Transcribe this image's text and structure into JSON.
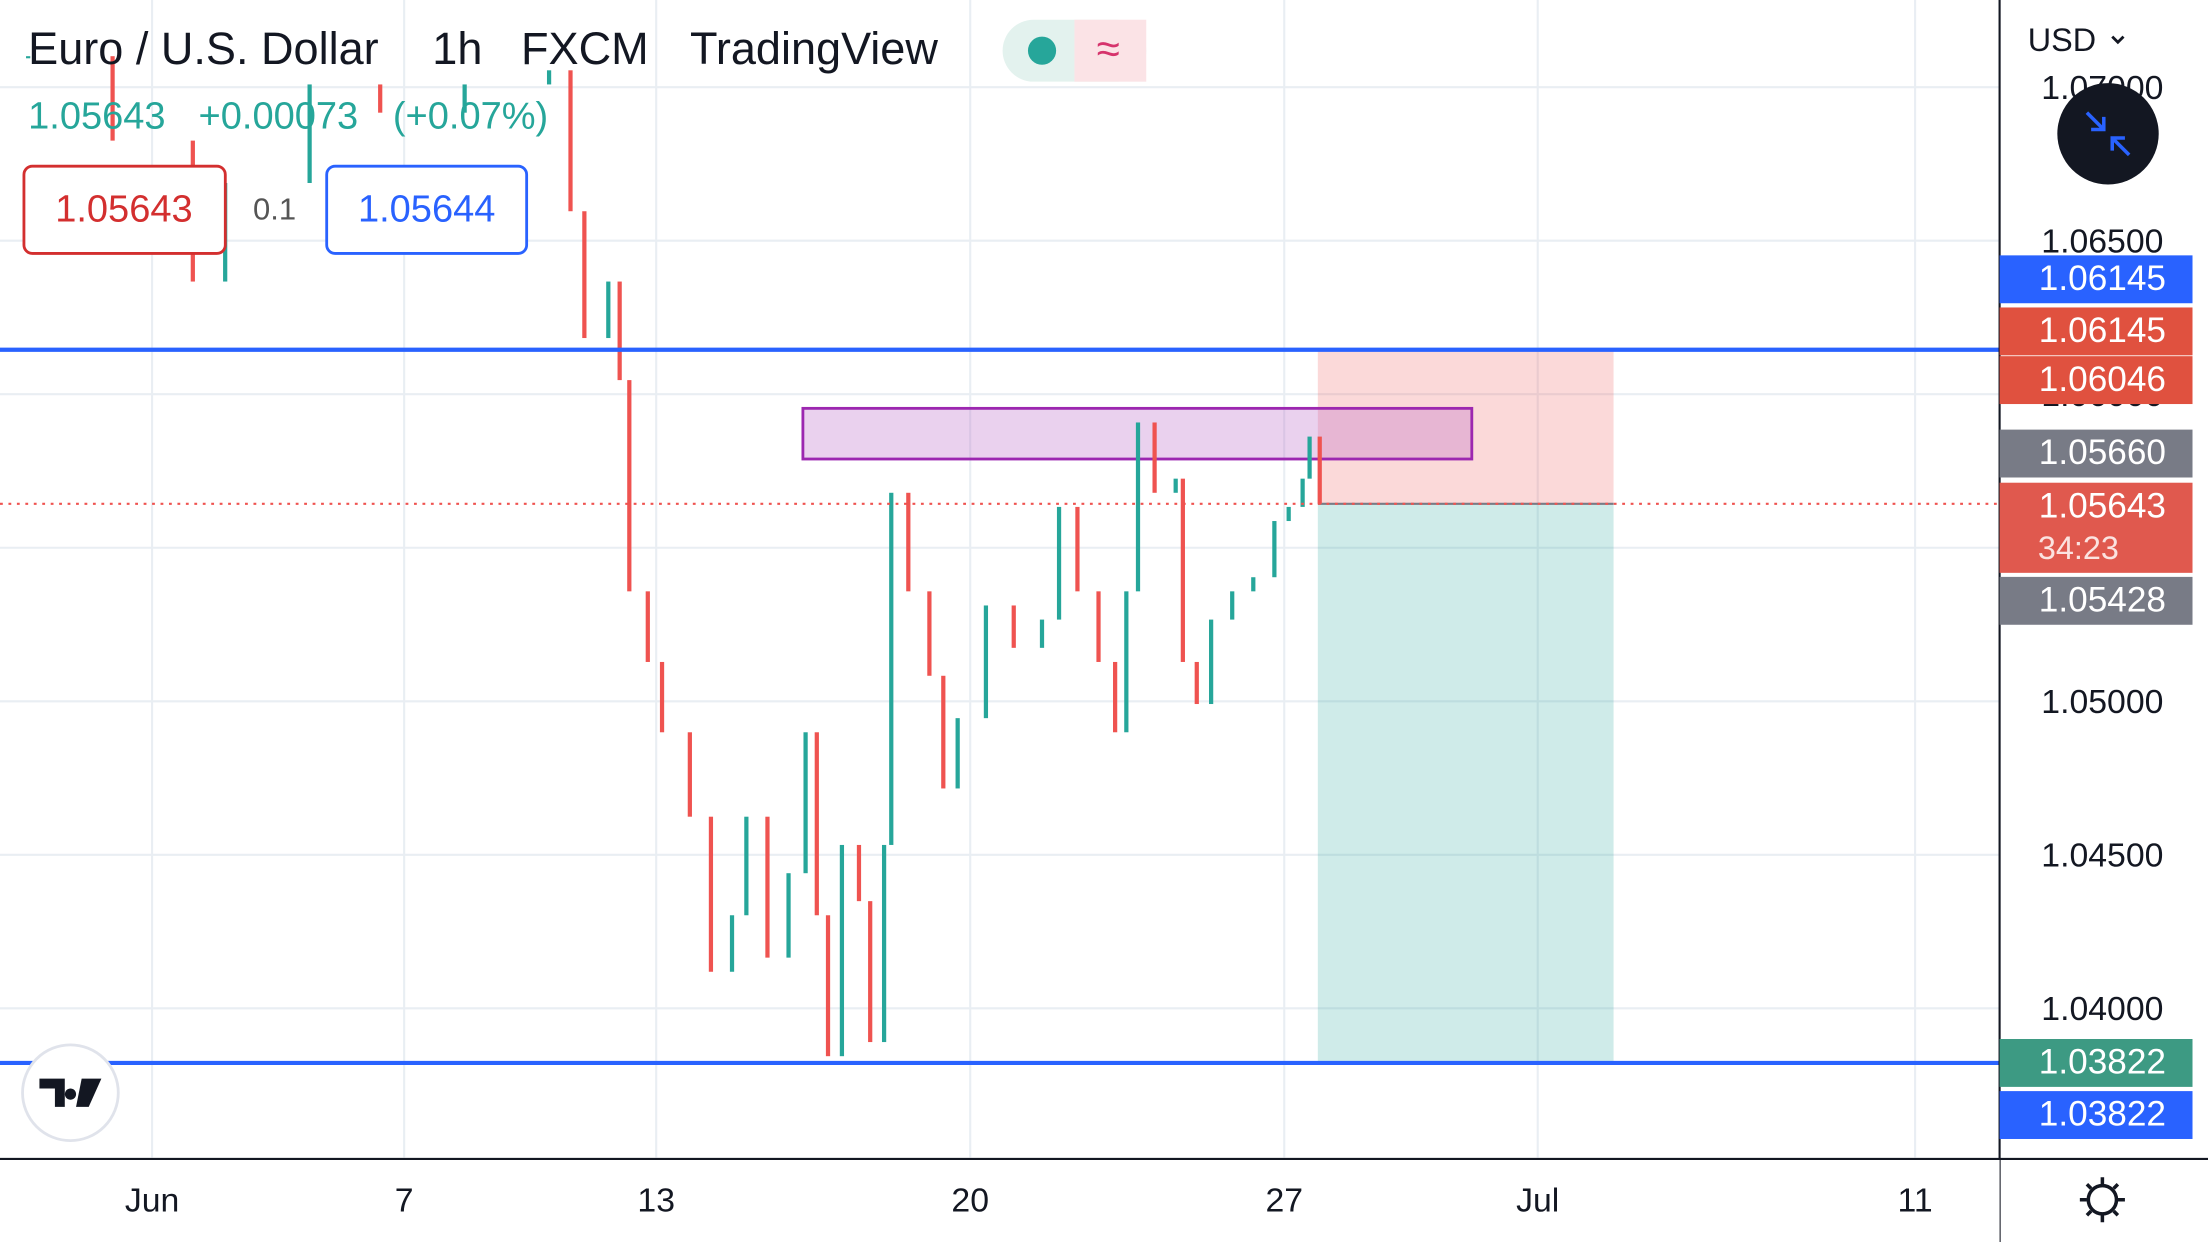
{
  "header": {
    "symbol": "Euro / U.S. Dollar",
    "interval": "1h",
    "source": "FXCM",
    "platform": "TradingView",
    "last": "1.05643",
    "change": "+0.00073",
    "change_pct": "(+0.07%)",
    "bid": "1.05643",
    "spread": "0.1",
    "ask": "1.05644",
    "currency": "USD",
    "countdown": "34:23"
  },
  "chart_data": {
    "type": "candlestick",
    "up_color": "#26a69a",
    "down_color": "#ef5350",
    "x": [
      -1.95,
      0.06,
      1.97,
      2.74,
      4.75,
      6.43,
      8.44,
      10.45,
      10.96,
      11.29,
      11.86,
      12.13,
      12.36,
      12.8,
      13.13,
      13.75,
      14.22,
      14.69,
      15.01,
      15.48,
      15.95,
      16.33,
      16.58,
      16.83,
      17.14,
      17.52,
      17.77,
      18.08,
      18.24,
      18.62,
      19.09,
      19.4,
      19.72,
      20.35,
      20.97,
      21.6,
      21.98,
      22.39,
      22.86,
      23.23,
      23.48,
      23.74,
      24.11,
      24.58,
      24.74,
      25.05,
      25.37,
      25.84,
      26.31,
      26.78,
      27.07,
      27.29,
      27.4,
      27.56
    ],
    "close": [
      1.07101,
      1.06826,
      1.06367,
      1.06688,
      1.07009,
      1.06917,
      1.07009,
      1.07055,
      1.06596,
      1.06183,
      1.06367,
      1.06046,
      1.05358,
      1.05128,
      1.04899,
      1.04624,
      1.04119,
      1.04303,
      1.04624,
      1.04165,
      1.0444,
      1.04899,
      1.04303,
      1.03844,
      1.04532,
      1.04349,
      1.0389,
      1.04532,
      1.05679,
      1.05358,
      1.05083,
      1.04716,
      1.04945,
      1.05312,
      1.05174,
      1.05266,
      1.05633,
      1.05358,
      1.05128,
      1.04899,
      1.05358,
      1.05908,
      1.05679,
      1.05725,
      1.05128,
      1.04991,
      1.05266,
      1.05358,
      1.05404,
      1.05587,
      1.05633,
      1.05725,
      1.05862,
      1.05643
    ],
    "xlim": [
      -2.62,
      43.24
    ],
    "ylim": [
      1.03514,
      1.07284
    ],
    "xticks": [
      {
        "value": 1,
        "label": "Jun"
      },
      7,
      13,
      20,
      27,
      {
        "value": 31,
        "label": "Jul"
      },
      {
        "value": 41,
        "label": "11"
      }
    ],
    "yticks": [
      {
        "value": 1.04,
        "label": "1.04000"
      },
      {
        "value": 1.045,
        "label": "1.04500"
      },
      {
        "value": 1.05,
        "label": "1.05000"
      },
      {
        "value": 1.055,
        "label": "1.05500"
      },
      {
        "value": 1.06,
        "label": "1.06000"
      },
      {
        "value": 1.065,
        "label": "1.06500"
      },
      {
        "value": 1.07,
        "label": "1.07000"
      }
    ],
    "grid": true,
    "levels": [
      1.06145,
      1.03822
    ],
    "zone": {
      "from": 16.27,
      "to": 29.96,
      "top": 1.05954,
      "bottom": 1.05789
    },
    "position": {
      "from": 27.53,
      "to": 33.01,
      "entry": 1.05643,
      "stop": 1.06145,
      "target": 1.03822
    },
    "last_price": 1.05643,
    "badges": [
      {
        "value": 1.06145,
        "label": "1.06145",
        "color": "#2962ff"
      },
      {
        "value": 1.06145,
        "label": "1.06145",
        "color": "#e0513f"
      },
      {
        "value": 1.06046,
        "label": "1.06046",
        "color": "#e0513f"
      },
      {
        "value": 1.0566,
        "label": "1.05660",
        "color": "#787b86"
      },
      {
        "value": 1.05643,
        "label": "1.05643",
        "color": "#e0594e"
      },
      {
        "value": 1.05428,
        "label": "1.05428",
        "color": "#787b86"
      },
      {
        "value": 1.03822,
        "label": "1.03822",
        "color": "#3d9a83"
      },
      {
        "value": 1.03822,
        "label": "1.03822",
        "color": "#2962ff"
      }
    ]
  }
}
